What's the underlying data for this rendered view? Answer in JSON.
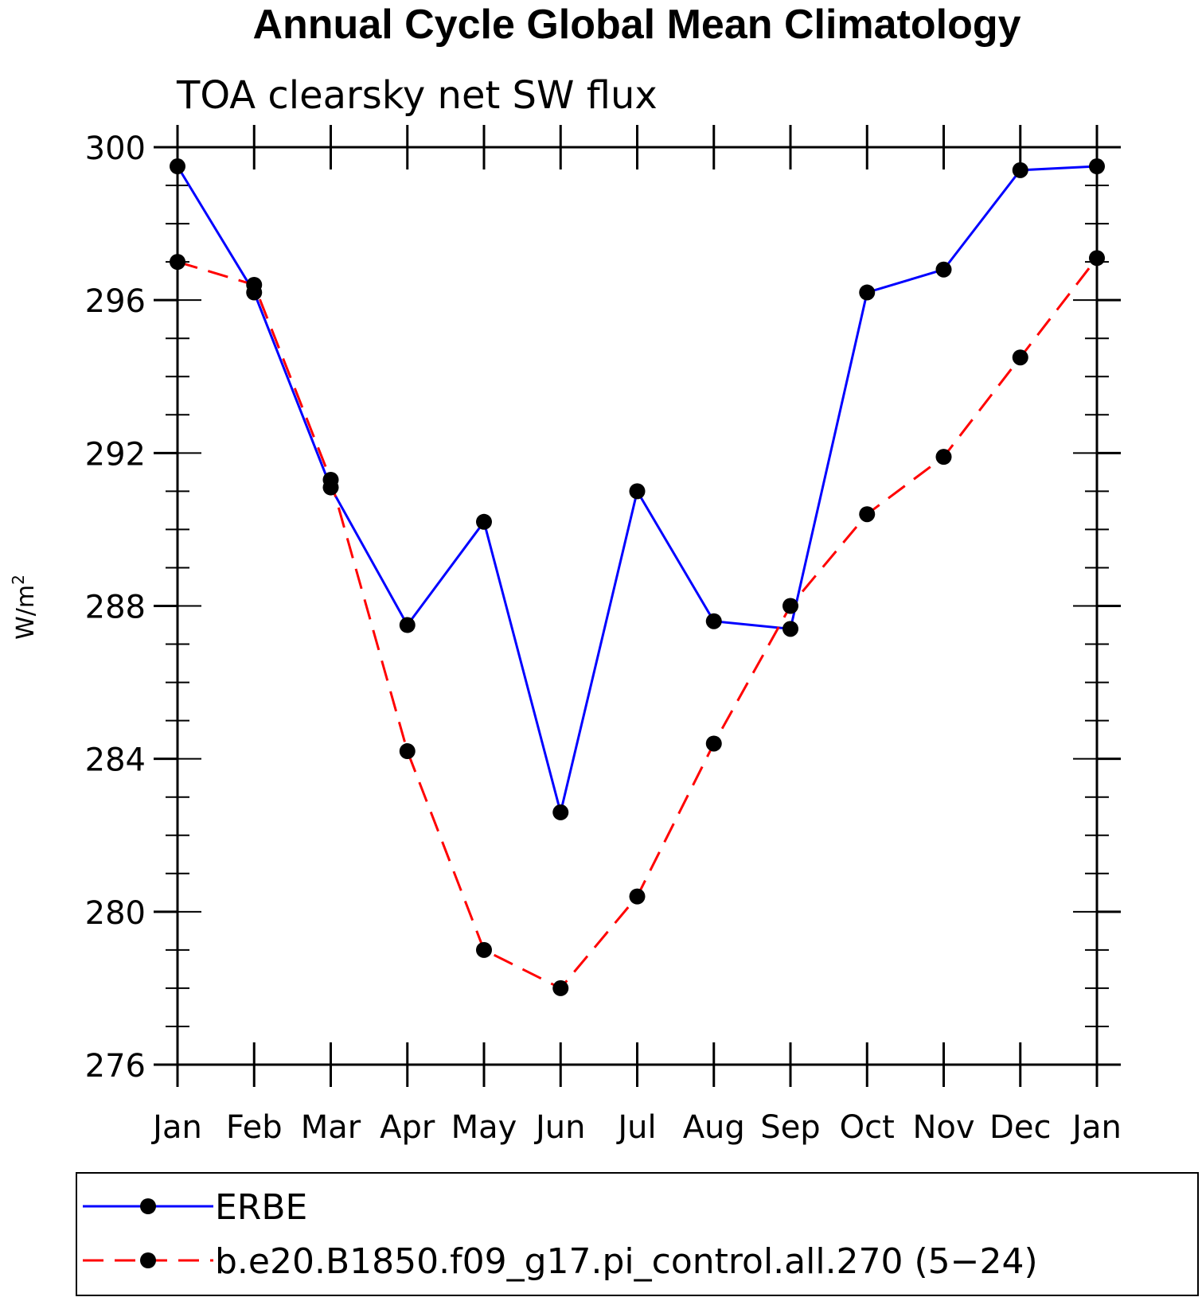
{
  "chart_data": {
    "type": "line",
    "title": "Annual Cycle Global Mean Climatology",
    "subtitle": "TOA clearsky net SW flux",
    "ylabel": "W/m",
    "ylabel_sup": "2",
    "categories": [
      "Jan",
      "Feb",
      "Mar",
      "Apr",
      "May",
      "Jun",
      "Jul",
      "Aug",
      "Sep",
      "Oct",
      "Nov",
      "Dec",
      "Jan"
    ],
    "ylim": [
      276,
      300
    ],
    "yticks": [
      276,
      280,
      284,
      288,
      292,
      296,
      300
    ],
    "grid": false,
    "legend_position": "bottom",
    "series": [
      {
        "name": "ERBE",
        "color": "#0000ff",
        "style": "solid",
        "marker": "filled-circle",
        "values": [
          299.5,
          296.2,
          291.1,
          287.5,
          290.2,
          282.6,
          291.0,
          287.6,
          287.4,
          296.2,
          296.8,
          299.4,
          299.5
        ]
      },
      {
        "name": "b.e20.B1850.f09_g17.pi_control.all.270 (5−24)",
        "color": "#ff0000",
        "style": "dashed",
        "marker": "filled-circle",
        "values": [
          297.0,
          296.4,
          291.3,
          284.2,
          279.0,
          278.0,
          280.4,
          284.4,
          288.0,
          290.4,
          291.9,
          294.5,
          297.1
        ]
      }
    ]
  }
}
